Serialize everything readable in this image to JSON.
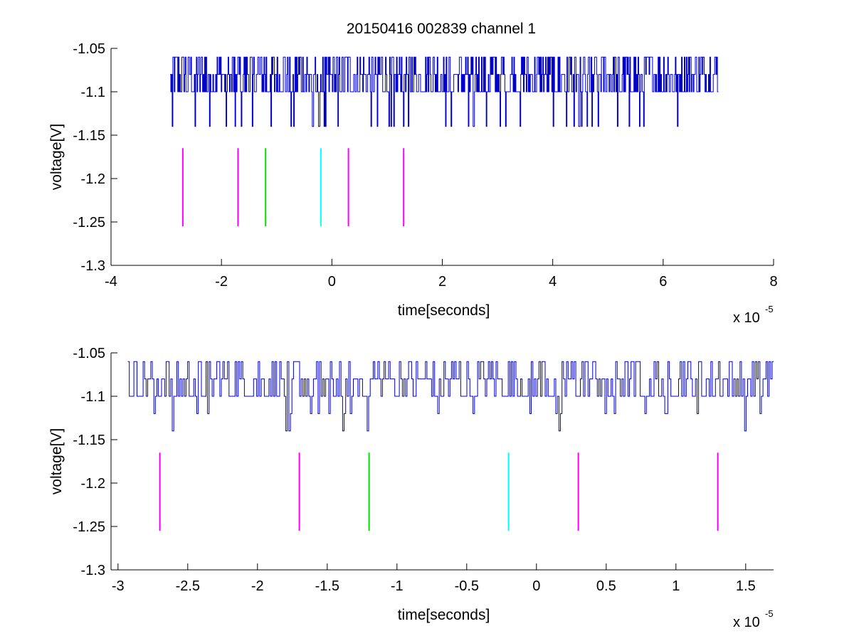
{
  "figure": {
    "title": "20150416 002839 channel 1"
  },
  "chart_data": [
    {
      "type": "line",
      "title": "20150416 002839 channel 1",
      "xlabel": "time[seconds]",
      "ylabel": "voltage[V]",
      "x_exponent_base": "x 10",
      "x_exponent_power": "-5",
      "xlim": [
        -4,
        8
      ],
      "ylim": [
        -1.3,
        -1.05
      ],
      "xticks": [
        "-4",
        "-2",
        "0",
        "2",
        "4",
        "6",
        "8"
      ],
      "yticks": [
        "-1.05",
        "-1.1",
        "-1.15",
        "-1.2",
        "-1.25",
        "-1.3"
      ],
      "grid": false,
      "series": [
        {
          "color": "#0000cc",
          "x_range": [
            -2.93,
            7.0
          ],
          "levels": [
            -1.06,
            -1.08,
            -1.1,
            -1.14
          ],
          "note_values": "noisy step signal sampled over x range"
        }
      ],
      "markers": [
        {
          "x": -2.7,
          "y_range": [
            -1.255,
            -1.165
          ],
          "color": "#ff00ff"
        },
        {
          "x": -1.7,
          "y_range": [
            -1.255,
            -1.165
          ],
          "color": "#ff00ff"
        },
        {
          "x": -1.2,
          "y_range": [
            -1.255,
            -1.165
          ],
          "color": "#00dd00"
        },
        {
          "x": -0.2,
          "y_range": [
            -1.255,
            -1.165
          ],
          "color": "#00ffff"
        },
        {
          "x": 0.3,
          "y_range": [
            -1.255,
            -1.165
          ],
          "color": "#ff00ff"
        },
        {
          "x": 1.3,
          "y_range": [
            -1.255,
            -1.165
          ],
          "color": "#ff00ff"
        }
      ]
    },
    {
      "type": "line",
      "title": "",
      "xlabel": "time[seconds]",
      "ylabel": "voltage[V]",
      "x_exponent_base": "x 10",
      "x_exponent_power": "-5",
      "xlim": [
        -3.05,
        1.7
      ],
      "ylim": [
        -1.3,
        -1.05
      ],
      "xticks": [
        "-3",
        "-2.5",
        "-2",
        "-1.5",
        "-1",
        "-0.5",
        "0",
        "0.5",
        "1",
        "1.5"
      ],
      "xtick_values": [
        -3,
        -2.5,
        -2,
        -1.5,
        -1,
        -0.5,
        0,
        0.5,
        1,
        1.5
      ],
      "yticks": [
        "-1.05",
        "-1.1",
        "-1.15",
        "-1.2",
        "-1.25",
        "-1.3"
      ],
      "grid": false,
      "series": [
        {
          "color": "#0000cc",
          "x_range": [
            -2.93,
            1.7
          ],
          "levels": [
            -1.06,
            -1.08,
            -1.1,
            -1.12,
            -1.14
          ],
          "note_values": "zoomed view of same step signal"
        }
      ],
      "markers": [
        {
          "x": -2.7,
          "y_range": [
            -1.255,
            -1.165
          ],
          "color": "#ff00ff"
        },
        {
          "x": -1.7,
          "y_range": [
            -1.255,
            -1.165
          ],
          "color": "#ff00ff"
        },
        {
          "x": -1.2,
          "y_range": [
            -1.255,
            -1.165
          ],
          "color": "#00dd00"
        },
        {
          "x": -0.2,
          "y_range": [
            -1.255,
            -1.165
          ],
          "color": "#00ffff"
        },
        {
          "x": 0.3,
          "y_range": [
            -1.255,
            -1.165
          ],
          "color": "#ff00ff"
        },
        {
          "x": 1.3,
          "y_range": [
            -1.255,
            -1.165
          ],
          "color": "#ff00ff"
        }
      ]
    }
  ]
}
